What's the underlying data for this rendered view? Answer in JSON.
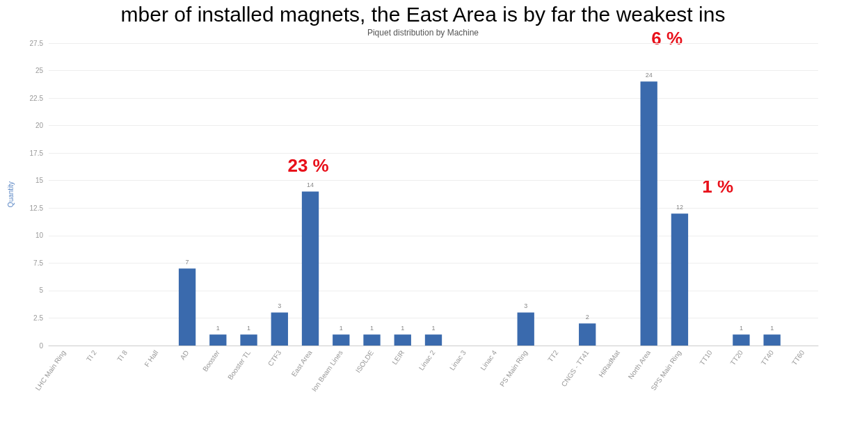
{
  "chart_data": {
    "type": "bar",
    "title": "mber of installed magnets, the East Area is by far the weakest ins",
    "subtitle": "Piquet distribution by Machine",
    "ylabel": "Quantity",
    "categories": [
      "LHC Main Ring",
      "TI 2",
      "TI 8",
      "F Hall",
      "AD",
      "Booster",
      "Booster TL",
      "CTF3",
      "East Area",
      "Ion Beam Lines",
      "ISOLDE",
      "LEIR",
      "Linac 2",
      "Linac 3",
      "Linac 4",
      "PS Main Ring",
      "TT2",
      "CNGS - TT41",
      "HiRadMat",
      "North Area",
      "SPS Main Ring",
      "TT10",
      "TT20",
      "TT40",
      "TT60"
    ],
    "values": [
      0,
      0,
      0,
      0,
      7,
      1,
      1,
      3,
      14,
      1,
      1,
      1,
      1,
      0,
      0,
      3,
      0,
      2,
      0,
      24,
      12,
      0,
      1,
      1,
      0
    ],
    "value_labels": [
      null,
      null,
      null,
      null,
      "7",
      "1",
      "1",
      "3",
      "14",
      "1",
      "1",
      "1",
      "1",
      null,
      null,
      "3",
      null,
      "2",
      null,
      "24",
      "12",
      null,
      "1",
      "1",
      null
    ],
    "color": "#3a6aad",
    "ylim": [
      0,
      27.5
    ],
    "yticks": [
      0,
      2.5,
      5,
      7.5,
      10,
      12.5,
      15,
      17.5,
      20,
      22.5,
      25,
      27.5
    ],
    "grid": "y",
    "annotations": [
      "23 %",
      "6 %",
      "1 %"
    ]
  }
}
